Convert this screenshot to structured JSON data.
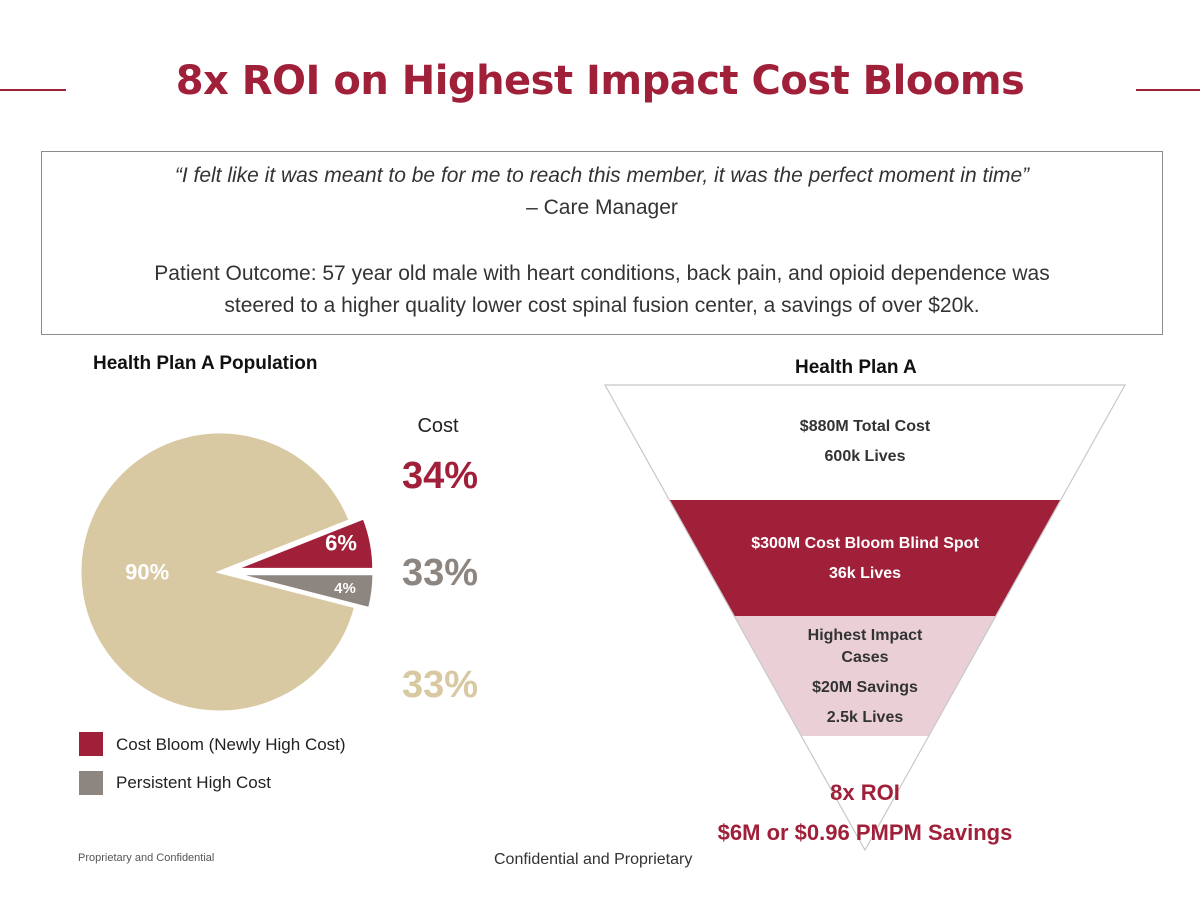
{
  "header": {
    "title": "8x ROI on Highest Impact Cost Blooms"
  },
  "quote_box": {
    "quote": "“I felt like it was meant to be for me to reach this member, it was the perfect moment in time”",
    "author": "– Care Manager",
    "outcome_line1": "Patient Outcome: 57 year old male with heart conditions, back pain, and opioid dependence was",
    "outcome_line2": "steered to a higher quality lower cost spinal fusion center, a savings of over $20k."
  },
  "colors": {
    "cost_bloom": "#a0203a",
    "persistent": "#8c8580",
    "rest": "#d9c9a3",
    "funnel_top": "#ffffff",
    "funnel_bottom": "#ead0d6"
  },
  "chart_data": [
    {
      "type": "pie",
      "title": "Health Plan A Population",
      "slices": [
        {
          "name": "Cost Bloom (Newly High Cost)",
          "value": 6,
          "label": "6%",
          "cost_share": "34%"
        },
        {
          "name": "Persistent High Cost",
          "value": 4,
          "label": "4%",
          "cost_share": "33%"
        },
        {
          "name": "",
          "value": 90,
          "label": "90%",
          "cost_share": "33%"
        }
      ],
      "cost_header": "Cost",
      "legend": [
        "Cost Bloom (Newly High Cost)",
        "Persistent High Cost"
      ]
    },
    {
      "type": "funnel",
      "title": "Health Plan A",
      "stages": [
        {
          "lines": [
            "$880M Total Cost",
            "600k Lives"
          ]
        },
        {
          "lines": [
            "$300M Cost Bloom Blind Spot",
            "36k Lives"
          ]
        },
        {
          "lines": [
            "Highest Impact",
            "Cases",
            "$20M Savings",
            "2.5k Lives"
          ]
        }
      ],
      "roi": "8x ROI",
      "savings": "$6M or $0.96 PMPM Savings"
    }
  ],
  "footer": {
    "left": "Proprietary and Confidential",
    "center": "Confidential and Proprietary"
  }
}
